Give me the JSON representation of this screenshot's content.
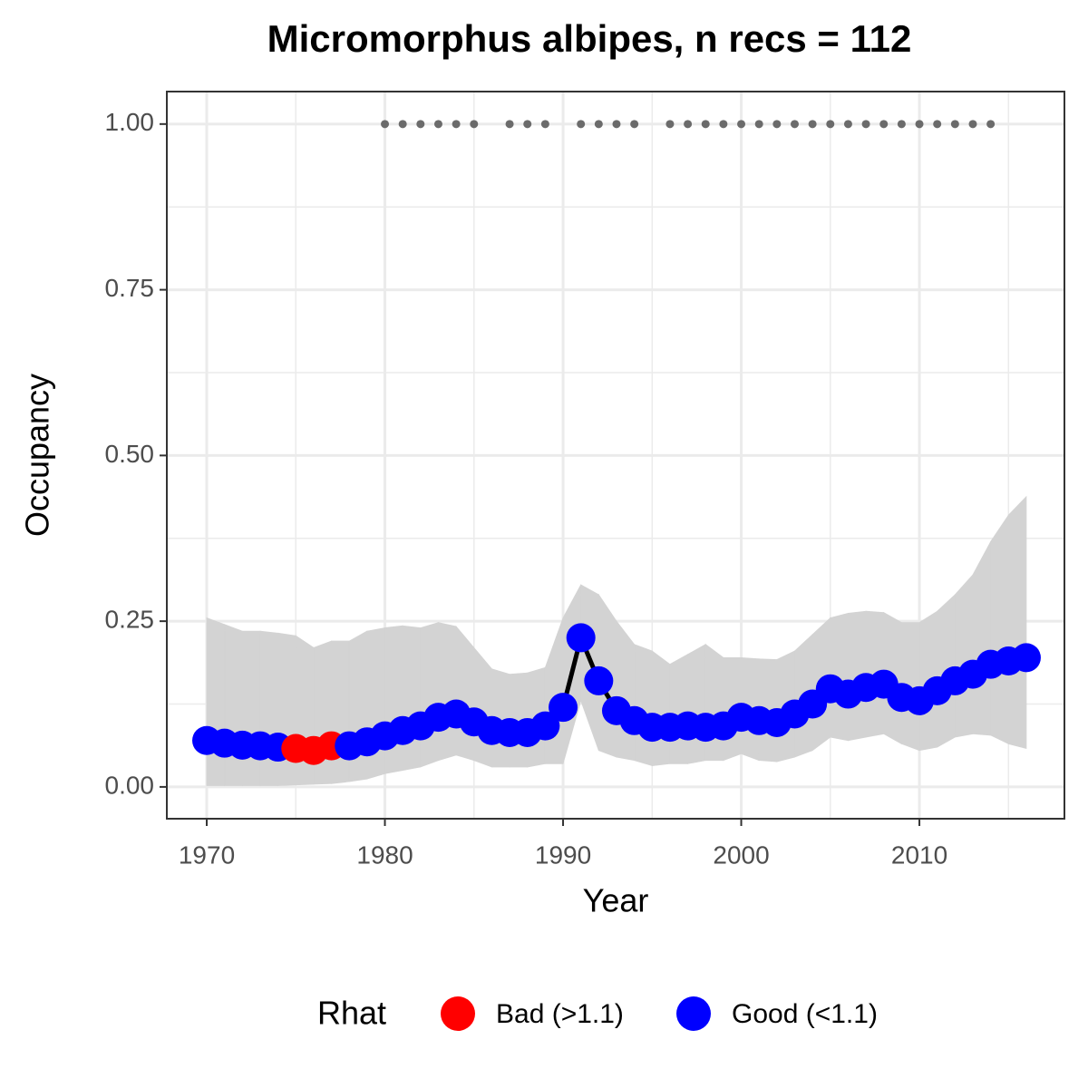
{
  "chart_data": {
    "type": "line",
    "title": "Micromorphus albipes, n recs = 112",
    "x_label": "Year",
    "y_label": "Occupancy",
    "legend_title": "Rhat",
    "x": [
      1970,
      1971,
      1972,
      1973,
      1974,
      1975,
      1976,
      1977,
      1978,
      1979,
      1980,
      1981,
      1982,
      1983,
      1984,
      1985,
      1986,
      1987,
      1988,
      1989,
      1990,
      1991,
      1992,
      1993,
      1994,
      1995,
      1996,
      1997,
      1998,
      1999,
      2000,
      2001,
      2002,
      2003,
      2004,
      2005,
      2006,
      2007,
      2008,
      2009,
      2010,
      2011,
      2012,
      2013,
      2014,
      2015,
      2016
    ],
    "line_color": "#000000",
    "series": [
      {
        "name": "Bad (>1.1)",
        "color": "#ff0000",
        "values": [
          null,
          null,
          null,
          null,
          null,
          0.058,
          0.055,
          0.062,
          null,
          null,
          null,
          null,
          null,
          null,
          null,
          null,
          null,
          null,
          null,
          null,
          null,
          null,
          null,
          null,
          null,
          null,
          null,
          null,
          null,
          null,
          null,
          null,
          null,
          null,
          null,
          null,
          null,
          null,
          null,
          null,
          null,
          null,
          null,
          null,
          null,
          null,
          null
        ]
      },
      {
        "name": "Good (<1.1)",
        "color": "#0000ff",
        "values": [
          0.07,
          0.066,
          0.063,
          0.062,
          0.06,
          null,
          null,
          null,
          0.062,
          0.068,
          0.077,
          0.085,
          0.092,
          0.105,
          0.11,
          0.098,
          0.085,
          0.082,
          0.082,
          0.092,
          0.12,
          0.225,
          0.16,
          0.115,
          0.1,
          0.09,
          0.09,
          0.092,
          0.09,
          0.092,
          0.105,
          0.1,
          0.097,
          0.11,
          0.125,
          0.148,
          0.14,
          0.15,
          0.155,
          0.135,
          0.13,
          0.145,
          0.16,
          0.17,
          0.185,
          0.19,
          0.195
        ]
      }
    ],
    "band": {
      "color": "#d3d3d3",
      "upper": [
        0.255,
        0.245,
        0.235,
        0.235,
        0.232,
        0.228,
        0.21,
        0.22,
        0.22,
        0.235,
        0.24,
        0.243,
        0.24,
        0.248,
        0.242,
        0.21,
        0.178,
        0.17,
        0.172,
        0.18,
        0.255,
        0.305,
        0.29,
        0.25,
        0.215,
        0.205,
        0.185,
        0.2,
        0.215,
        0.195,
        0.195,
        0.193,
        0.192,
        0.205,
        0.23,
        0.255,
        0.262,
        0.265,
        0.263,
        0.248,
        0.248,
        0.265,
        0.29,
        0.32,
        0.37,
        0.41,
        0.438
      ],
      "lower": [
        0.002,
        0.002,
        0.002,
        0.002,
        0.002,
        0.003,
        0.004,
        0.005,
        0.008,
        0.012,
        0.02,
        0.025,
        0.03,
        0.04,
        0.048,
        0.04,
        0.03,
        0.03,
        0.03,
        0.035,
        0.035,
        0.13,
        0.055,
        0.045,
        0.04,
        0.032,
        0.035,
        0.035,
        0.04,
        0.04,
        0.05,
        0.04,
        0.038,
        0.045,
        0.055,
        0.075,
        0.07,
        0.075,
        0.08,
        0.065,
        0.055,
        0.06,
        0.075,
        0.08,
        0.078,
        0.065,
        0.058
      ]
    },
    "records": {
      "color": "#6b6b6b",
      "x": [
        1980,
        1981,
        1982,
        1983,
        1984,
        1985,
        1987,
        1988,
        1989,
        1991,
        1992,
        1993,
        1994,
        1996,
        1997,
        1998,
        1999,
        2000,
        2001,
        2002,
        2003,
        2004,
        2005,
        2006,
        2007,
        2008,
        2009,
        2010,
        2011,
        2012,
        2013,
        2014
      ],
      "values": [
        1,
        1,
        1,
        1,
        1,
        1,
        1,
        1,
        1,
        1,
        1,
        1,
        1,
        1,
        1,
        1,
        1,
        1,
        1,
        1,
        1,
        1,
        1,
        1,
        1,
        1,
        1,
        1,
        1,
        1,
        1,
        1
      ]
    },
    "xlim": [
      1967.76,
      2018.14
    ],
    "ylim": [
      -0.048,
      1.049
    ],
    "xticks": [
      1970,
      1980,
      1990,
      2000,
      2010
    ],
    "yticks": [
      {
        "value": 0,
        "label": "0.00"
      },
      {
        "value": 0.25,
        "label": "0.25"
      },
      {
        "value": 0.5,
        "label": "0.50"
      },
      {
        "value": 0.75,
        "label": "0.75"
      },
      {
        "value": 1,
        "label": "1.00"
      }
    ],
    "x_minor_grid": [
      1975,
      1985,
      1995,
      2005,
      2015
    ],
    "y_minor_grid": [
      0.125,
      0.375,
      0.625,
      0.875
    ],
    "grid": true
  }
}
